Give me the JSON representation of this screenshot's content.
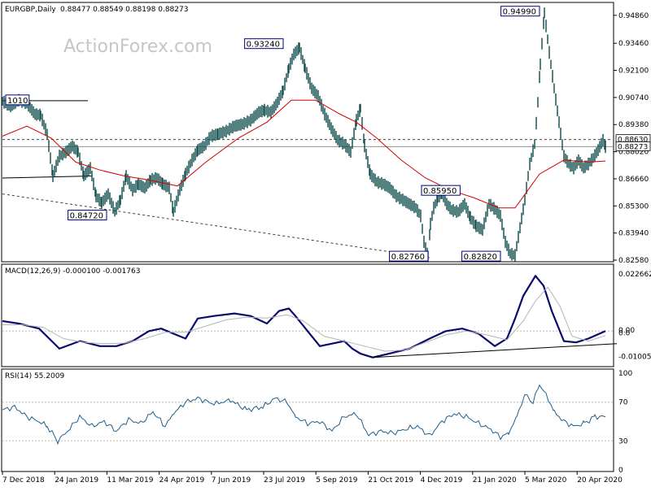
{
  "header": {
    "symbol": "EURGBP,Daily",
    "ohlc": "0.88477 0.88549 0.88198 0.88273",
    "watermark": "ActionForex.com"
  },
  "colors": {
    "background": "#ffffff",
    "price": "#0a4a4a",
    "ma": "#d40000",
    "macd": "#0a0a6e",
    "signal": "#b4b4b4",
    "rsi": "#1f5f8b",
    "grid": "#bdbdbd",
    "trendline": "#000000",
    "dashed": "#404040",
    "label_border": "#000080",
    "current_price_bg": "#ffffff"
  },
  "x_axis": {
    "labels": [
      "7 Dec 2018",
      "24 Jan 2019",
      "11 Mar 2019",
      "24 Apr 2019",
      "7 Jun 2019",
      "23 Jul 2019",
      "5 Sep 2019",
      "21 Oct 2019",
      "4 Dec 2019",
      "21 Jan 2020",
      "5 Mar 2020",
      "20 Apr 2020"
    ]
  },
  "chart_data": [
    {
      "type": "line",
      "panel": "price",
      "title": "EURGBP,Daily 0.88477 0.88549 0.88198 0.88273",
      "ylim": [
        0.8258,
        0.9514
      ],
      "y_ticks": [
        "0.94860",
        "0.93460",
        "0.92100",
        "0.90740",
        "0.89380",
        "0.88020",
        "0.86660",
        "0.85300",
        "0.83940",
        "0.82580"
      ],
      "labels": {
        "level_1010": "1010",
        "high_93240": "0.93240",
        "low_84720": "0.84720",
        "low_82760": "0.82760",
        "level_85950": "0.85950",
        "low_82820": "0.82820",
        "high_94990": "0.94990",
        "resistance": "0.88630",
        "current": "0.88273"
      },
      "series": [
        {
          "role": "price",
          "x": [
            0,
            10,
            20,
            30,
            40,
            47,
            55,
            62,
            70,
            78,
            86,
            93,
            100,
            108,
            115,
            122,
            130,
            138,
            145,
            152,
            160,
            167,
            175,
            182,
            190,
            197,
            205,
            210,
            218,
            225,
            233,
            240,
            248,
            256,
            265,
            275,
            285,
            295,
            305,
            315,
            322,
            330,
            338,
            345,
            352,
            358,
            365,
            372,
            380,
            388,
            396,
            404,
            412,
            420,
            428,
            435,
            440,
            445,
            452,
            460,
            468,
            476,
            484,
            492,
            500,
            508,
            514,
            518,
            523,
            526,
            530,
            535,
            540,
            546,
            552,
            560,
            568,
            575,
            582,
            590,
            598,
            606,
            612,
            618,
            624,
            630,
            636,
            642,
            648,
            654,
            658,
            661,
            666,
            672,
            678,
            684,
            690,
            696,
            702,
            708,
            714,
            720,
            726,
            732,
            738,
            741
          ],
          "values": [
            0.9055,
            0.903,
            0.906,
            0.9045,
            0.899,
            0.8985,
            0.889,
            0.868,
            0.878,
            0.88,
            0.883,
            0.88,
            0.868,
            0.872,
            0.858,
            0.8545,
            0.859,
            0.85,
            0.856,
            0.868,
            0.861,
            0.864,
            0.862,
            0.866,
            0.867,
            0.864,
            0.862,
            0.85,
            0.861,
            0.869,
            0.876,
            0.881,
            0.883,
            0.888,
            0.889,
            0.8905,
            0.893,
            0.894,
            0.896,
            0.9,
            0.901,
            0.9,
            0.905,
            0.911,
            0.922,
            0.929,
            0.9324,
            0.922,
            0.912,
            0.908,
            0.899,
            0.892,
            0.886,
            0.884,
            0.88,
            0.896,
            0.902,
            0.883,
            0.869,
            0.865,
            0.864,
            0.862,
            0.858,
            0.856,
            0.854,
            0.852,
            0.848,
            0.835,
            0.8276,
            0.844,
            0.852,
            0.857,
            0.8595,
            0.854,
            0.851,
            0.85,
            0.854,
            0.847,
            0.843,
            0.841,
            0.854,
            0.851,
            0.848,
            0.835,
            0.829,
            0.8282,
            0.842,
            0.856,
            0.874,
            0.884,
            0.905,
            0.924,
            0.9499,
            0.93,
            0.912,
            0.895,
            0.878,
            0.874,
            0.872,
            0.876,
            0.872,
            0.874,
            0.877,
            0.881,
            0.886,
            0.8827
          ]
        },
        {
          "role": "ma",
          "x": [
            0,
            30,
            60,
            90,
            120,
            150,
            180,
            215,
            250,
            290,
            325,
            355,
            385,
            415,
            435,
            460,
            490,
            520,
            550,
            580,
            610,
            630,
            660,
            690,
            720,
            741
          ],
          "values": [
            0.888,
            0.893,
            0.887,
            0.875,
            0.871,
            0.868,
            0.866,
            0.863,
            0.875,
            0.887,
            0.895,
            0.906,
            0.906,
            0.899,
            0.895,
            0.887,
            0.876,
            0.867,
            0.861,
            0.857,
            0.852,
            0.852,
            0.869,
            0.876,
            0.875,
            0.8755
          ]
        }
      ]
    },
    {
      "type": "line",
      "panel": "macd",
      "title": "MACD(12,26,9) -0.000100 -0.001763",
      "ylim": [
        -0.0135,
        0.025
      ],
      "y_ticks": [
        "0.022662",
        "0.00",
        "0.0",
        "-0.010052"
      ],
      "series": [
        {
          "role": "macd",
          "x": [
            0,
            20,
            45,
            70,
            95,
            120,
            140,
            160,
            180,
            195,
            210,
            225,
            240,
            260,
            285,
            305,
            325,
            340,
            352,
            360,
            375,
            390,
            405,
            420,
            430,
            440,
            455,
            475,
            500,
            525,
            545,
            565,
            585,
            605,
            620,
            630,
            640,
            655,
            665,
            675,
            690,
            705,
            720,
            741
          ],
          "values": [
            0.004,
            0.003,
            0.001,
            -0.007,
            -0.004,
            -0.006,
            -0.006,
            -0.004,
            0.0,
            0.001,
            -0.001,
            -0.003,
            0.005,
            0.006,
            0.007,
            0.006,
            0.003,
            0.008,
            0.009,
            0.006,
            0.0,
            -0.006,
            -0.005,
            -0.004,
            -0.007,
            -0.009,
            -0.0105,
            -0.009,
            -0.007,
            -0.003,
            0.0,
            0.001,
            -0.001,
            -0.006,
            -0.003,
            0.005,
            0.014,
            0.022,
            0.018,
            0.008,
            -0.004,
            -0.0045,
            -0.003,
            0.0
          ]
        },
        {
          "role": "signal",
          "x": [
            0,
            25,
            50,
            75,
            100,
            125,
            150,
            175,
            200,
            225,
            250,
            275,
            300,
            325,
            350,
            370,
            395,
            420,
            445,
            470,
            495,
            520,
            545,
            570,
            595,
            620,
            640,
            655,
            670,
            685,
            700,
            720,
            741
          ],
          "values": [
            0.0025,
            0.0025,
            0.0015,
            -0.003,
            -0.0045,
            -0.005,
            -0.0048,
            -0.003,
            -0.0005,
            -0.0005,
            0.002,
            0.0045,
            0.0055,
            0.0052,
            0.0065,
            0.004,
            -0.002,
            -0.004,
            -0.006,
            -0.008,
            -0.0075,
            -0.0045,
            -0.0015,
            0.0,
            -0.0015,
            -0.0035,
            0.004,
            0.012,
            0.0175,
            0.01,
            -0.002,
            -0.004,
            -0.0018
          ]
        },
        {
          "role": "trendline",
          "x": [
            455,
            755
          ],
          "values": [
            -0.0105,
            -0.005
          ]
        }
      ]
    },
    {
      "type": "line",
      "panel": "rsi",
      "title": "RSI(14) 55.2009",
      "ylim": [
        0,
        100
      ],
      "y_ticks": [
        "100",
        "70",
        "30",
        "0"
      ],
      "levels": [
        70,
        30
      ],
      "series": [
        {
          "role": "rsi",
          "x": [
            0,
            15,
            30,
            45,
            55,
            68,
            80,
            95,
            110,
            125,
            140,
            155,
            170,
            185,
            200,
            210,
            225,
            240,
            260,
            280,
            300,
            320,
            335,
            350,
            360,
            375,
            390,
            405,
            420,
            435,
            450,
            465,
            480,
            495,
            510,
            525,
            540,
            555,
            570,
            585,
            600,
            612,
            622,
            632,
            642,
            652,
            660,
            668,
            678,
            690,
            702,
            715,
            728,
            741
          ],
          "values": [
            62,
            65,
            55,
            50,
            45,
            30,
            40,
            55,
            45,
            50,
            40,
            52,
            48,
            60,
            45,
            58,
            70,
            74,
            68,
            72,
            62,
            65,
            74,
            70,
            55,
            48,
            50,
            40,
            55,
            58,
            36,
            40,
            38,
            42,
            45,
            35,
            50,
            58,
            55,
            48,
            42,
            34,
            38,
            55,
            78,
            70,
            88,
            78,
            60,
            50,
            45,
            48,
            55,
            55
          ]
        }
      ]
    }
  ]
}
